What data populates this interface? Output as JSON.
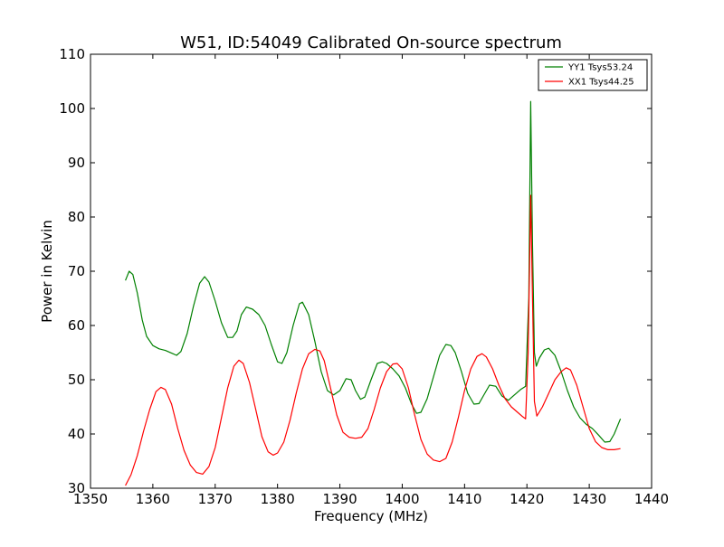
{
  "chart_data": {
    "type": "line",
    "title": "W51, ID:54049 Calibrated On-source spectrum",
    "xlabel": "Frequency (MHz)",
    "ylabel": "Power in Kelvin",
    "xlim": [
      1350,
      1440
    ],
    "ylim": [
      30,
      110
    ],
    "xticks": [
      1350,
      1360,
      1370,
      1380,
      1390,
      1400,
      1410,
      1420,
      1430,
      1440
    ],
    "yticks": [
      30,
      40,
      50,
      60,
      70,
      80,
      90,
      100,
      110
    ],
    "grid": false,
    "legend_position": "top-right",
    "series": [
      {
        "name": "YY1 Tsys53.24",
        "color": "#008000",
        "points": [
          [
            1355.6,
            68.3
          ],
          [
            1356.2,
            70.0
          ],
          [
            1356.8,
            69.4
          ],
          [
            1357.5,
            66.0
          ],
          [
            1358.3,
            61.0
          ],
          [
            1359.0,
            58.0
          ],
          [
            1360.0,
            56.3
          ],
          [
            1361.0,
            55.7
          ],
          [
            1362.0,
            55.4
          ],
          [
            1363.0,
            54.9
          ],
          [
            1363.8,
            54.5
          ],
          [
            1364.5,
            55.2
          ],
          [
            1365.5,
            58.5
          ],
          [
            1366.5,
            63.5
          ],
          [
            1367.5,
            67.8
          ],
          [
            1368.3,
            69.0
          ],
          [
            1369.0,
            68.0
          ],
          [
            1370.0,
            64.5
          ],
          [
            1371.0,
            60.5
          ],
          [
            1372.0,
            57.8
          ],
          [
            1372.8,
            57.8
          ],
          [
            1373.5,
            59.0
          ],
          [
            1374.2,
            62.0
          ],
          [
            1375.0,
            63.4
          ],
          [
            1376.0,
            63.0
          ],
          [
            1377.0,
            62.0
          ],
          [
            1378.0,
            60.0
          ],
          [
            1379.0,
            56.5
          ],
          [
            1380.0,
            53.3
          ],
          [
            1380.7,
            53.0
          ],
          [
            1381.5,
            55.0
          ],
          [
            1382.5,
            60.0
          ],
          [
            1383.5,
            64.0
          ],
          [
            1384.0,
            64.3
          ],
          [
            1385.0,
            62.0
          ],
          [
            1386.0,
            57.0
          ],
          [
            1387.0,
            51.5
          ],
          [
            1388.0,
            48.0
          ],
          [
            1389.0,
            47.2
          ],
          [
            1390.0,
            48.0
          ],
          [
            1391.0,
            50.2
          ],
          [
            1391.8,
            50.0
          ],
          [
            1392.5,
            48.0
          ],
          [
            1393.3,
            46.4
          ],
          [
            1394.0,
            46.8
          ],
          [
            1395.0,
            50.0
          ],
          [
            1396.0,
            53.0
          ],
          [
            1396.8,
            53.3
          ],
          [
            1397.5,
            53.0
          ],
          [
            1398.5,
            52.0
          ],
          [
            1399.5,
            50.7
          ],
          [
            1400.5,
            48.5
          ],
          [
            1401.5,
            45.5
          ],
          [
            1402.3,
            43.8
          ],
          [
            1403.0,
            44.0
          ],
          [
            1404.0,
            46.5
          ],
          [
            1405.0,
            50.5
          ],
          [
            1406.0,
            54.5
          ],
          [
            1407.0,
            56.5
          ],
          [
            1407.8,
            56.3
          ],
          [
            1408.5,
            55.0
          ],
          [
            1409.5,
            51.5
          ],
          [
            1410.5,
            47.5
          ],
          [
            1411.5,
            45.5
          ],
          [
            1412.3,
            45.6
          ],
          [
            1413.0,
            47.0
          ],
          [
            1414.0,
            49.0
          ],
          [
            1415.0,
            48.8
          ],
          [
            1416.0,
            47.0
          ],
          [
            1417.0,
            46.2
          ],
          [
            1418.0,
            47.2
          ],
          [
            1419.0,
            48.2
          ],
          [
            1419.8,
            48.8
          ],
          [
            1420.3,
            65.0
          ],
          [
            1420.6,
            101.3
          ],
          [
            1420.9,
            75.0
          ],
          [
            1421.2,
            55.0
          ],
          [
            1421.5,
            52.5
          ],
          [
            1422.0,
            54.0
          ],
          [
            1422.8,
            55.5
          ],
          [
            1423.5,
            55.8
          ],
          [
            1424.5,
            54.5
          ],
          [
            1425.5,
            51.5
          ],
          [
            1426.5,
            48.0
          ],
          [
            1427.5,
            45.0
          ],
          [
            1428.5,
            43.0
          ],
          [
            1429.5,
            41.8
          ],
          [
            1430.5,
            41.0
          ],
          [
            1431.5,
            39.8
          ],
          [
            1432.5,
            38.5
          ],
          [
            1433.3,
            38.6
          ],
          [
            1434.0,
            40.0
          ],
          [
            1435.0,
            42.8
          ]
        ]
      },
      {
        "name": "XX1 Tsys44.25",
        "color": "#ff0000",
        "points": [
          [
            1355.6,
            30.5
          ],
          [
            1356.5,
            32.5
          ],
          [
            1357.5,
            36.0
          ],
          [
            1358.5,
            40.5
          ],
          [
            1359.5,
            44.5
          ],
          [
            1360.5,
            47.8
          ],
          [
            1361.3,
            48.6
          ],
          [
            1362.0,
            48.2
          ],
          [
            1363.0,
            45.5
          ],
          [
            1364.0,
            41.0
          ],
          [
            1365.0,
            37.0
          ],
          [
            1366.0,
            34.3
          ],
          [
            1367.0,
            32.9
          ],
          [
            1368.0,
            32.6
          ],
          [
            1369.0,
            34.0
          ],
          [
            1370.0,
            37.5
          ],
          [
            1371.0,
            43.0
          ],
          [
            1372.0,
            48.5
          ],
          [
            1373.0,
            52.5
          ],
          [
            1373.8,
            53.6
          ],
          [
            1374.5,
            53.0
          ],
          [
            1375.5,
            49.5
          ],
          [
            1376.5,
            44.5
          ],
          [
            1377.5,
            39.5
          ],
          [
            1378.5,
            36.7
          ],
          [
            1379.3,
            36.1
          ],
          [
            1380.0,
            36.5
          ],
          [
            1381.0,
            38.5
          ],
          [
            1382.0,
            42.5
          ],
          [
            1383.0,
            47.5
          ],
          [
            1384.0,
            52.0
          ],
          [
            1385.0,
            54.8
          ],
          [
            1386.0,
            55.6
          ],
          [
            1386.8,
            55.3
          ],
          [
            1387.5,
            53.5
          ],
          [
            1388.5,
            48.5
          ],
          [
            1389.5,
            43.5
          ],
          [
            1390.5,
            40.3
          ],
          [
            1391.5,
            39.4
          ],
          [
            1392.5,
            39.2
          ],
          [
            1393.5,
            39.4
          ],
          [
            1394.5,
            41.0
          ],
          [
            1395.5,
            44.5
          ],
          [
            1396.5,
            48.5
          ],
          [
            1397.5,
            51.5
          ],
          [
            1398.5,
            52.9
          ],
          [
            1399.2,
            53.0
          ],
          [
            1400.0,
            52.0
          ],
          [
            1401.0,
            48.5
          ],
          [
            1402.0,
            43.5
          ],
          [
            1403.0,
            39.0
          ],
          [
            1404.0,
            36.3
          ],
          [
            1405.0,
            35.2
          ],
          [
            1406.0,
            34.9
          ],
          [
            1407.0,
            35.5
          ],
          [
            1408.0,
            38.5
          ],
          [
            1409.0,
            43.0
          ],
          [
            1410.0,
            48.0
          ],
          [
            1411.0,
            52.0
          ],
          [
            1412.0,
            54.3
          ],
          [
            1412.8,
            54.8
          ],
          [
            1413.5,
            54.2
          ],
          [
            1414.5,
            52.0
          ],
          [
            1415.5,
            49.0
          ],
          [
            1416.5,
            46.5
          ],
          [
            1417.5,
            45.0
          ],
          [
            1418.5,
            44.0
          ],
          [
            1419.3,
            43.2
          ],
          [
            1419.8,
            42.8
          ],
          [
            1420.2,
            55.0
          ],
          [
            1420.6,
            84.0
          ],
          [
            1420.9,
            65.0
          ],
          [
            1421.2,
            46.0
          ],
          [
            1421.6,
            43.3
          ],
          [
            1422.5,
            45.0
          ],
          [
            1423.5,
            47.5
          ],
          [
            1424.5,
            50.0
          ],
          [
            1425.5,
            51.5
          ],
          [
            1426.3,
            52.2
          ],
          [
            1427.0,
            51.8
          ],
          [
            1428.0,
            49.0
          ],
          [
            1429.0,
            45.0
          ],
          [
            1430.0,
            41.0
          ],
          [
            1431.0,
            38.6
          ],
          [
            1432.0,
            37.5
          ],
          [
            1433.0,
            37.1
          ],
          [
            1434.0,
            37.1
          ],
          [
            1435.0,
            37.3
          ]
        ]
      }
    ]
  }
}
